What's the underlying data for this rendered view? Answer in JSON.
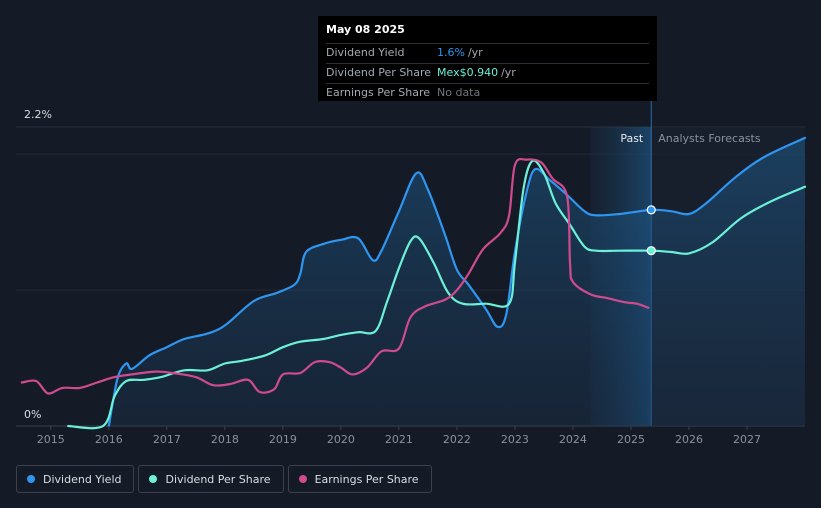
{
  "tooltip": {
    "date": "May 08 2025",
    "rows": [
      {
        "label": "Dividend Yield",
        "value": "1.6%",
        "unit": "/yr",
        "color": "#2e96f0"
      },
      {
        "label": "Dividend Per Share",
        "value": "Mex$0.940",
        "unit": "/yr",
        "color": "#6cf0d8"
      },
      {
        "label": "Earnings Per Share",
        "value": "No data",
        "unit": "",
        "color": "#6f757d"
      }
    ]
  },
  "regions": {
    "past": "Past",
    "forecast": "Analysts Forecasts"
  },
  "legend": [
    {
      "label": "Dividend Yield",
      "color": "#2e96f0"
    },
    {
      "label": "Dividend Per Share",
      "color": "#6cf0d8"
    },
    {
      "label": "Earnings Per Share",
      "color": "#cf4b8e"
    }
  ],
  "chart_data": {
    "type": "line",
    "x_ticks": [
      "2015",
      "2016",
      "2017",
      "2018",
      "2019",
      "2020",
      "2021",
      "2022",
      "2023",
      "2024",
      "2025",
      "2026",
      "2027"
    ],
    "y_ticks": [
      "0%",
      "2.2%"
    ],
    "ylim": [
      0,
      2.2
    ],
    "xlim": [
      2014.4,
      2028.0
    ],
    "cursor_x": 2025.35,
    "past_end": 2025.35,
    "forecast_shade_start": 2024.3,
    "series": [
      {
        "name": "Dividend Yield",
        "color": "#2e96f0",
        "filled": true,
        "points": [
          [
            2016.0,
            0
          ],
          [
            2016.15,
            0.35
          ],
          [
            2016.3,
            0.46
          ],
          [
            2016.4,
            0.42
          ],
          [
            2016.7,
            0.52
          ],
          [
            2017.0,
            0.58
          ],
          [
            2017.3,
            0.64
          ],
          [
            2017.7,
            0.68
          ],
          [
            2018.0,
            0.74
          ],
          [
            2018.5,
            0.92
          ],
          [
            2018.9,
            0.98
          ],
          [
            2019.2,
            1.04
          ],
          [
            2019.3,
            1.12
          ],
          [
            2019.4,
            1.28
          ],
          [
            2019.7,
            1.34
          ],
          [
            2020.0,
            1.37
          ],
          [
            2020.3,
            1.38
          ],
          [
            2020.55,
            1.22
          ],
          [
            2020.7,
            1.29
          ],
          [
            2021.0,
            1.58
          ],
          [
            2021.3,
            1.86
          ],
          [
            2021.5,
            1.74
          ],
          [
            2021.8,
            1.4
          ],
          [
            2022.0,
            1.15
          ],
          [
            2022.2,
            1.04
          ],
          [
            2022.5,
            0.86
          ],
          [
            2022.7,
            0.73
          ],
          [
            2022.85,
            0.82
          ],
          [
            2023.0,
            1.28
          ],
          [
            2023.2,
            1.72
          ],
          [
            2023.35,
            1.89
          ],
          [
            2023.6,
            1.81
          ],
          [
            2023.9,
            1.7
          ],
          [
            2024.2,
            1.58
          ],
          [
            2024.4,
            1.55
          ],
          [
            2024.8,
            1.56
          ],
          [
            2025.35,
            1.59
          ],
          [
            2025.7,
            1.58
          ],
          [
            2026.0,
            1.56
          ],
          [
            2026.3,
            1.64
          ],
          [
            2026.8,
            1.83
          ],
          [
            2027.3,
            1.98
          ],
          [
            2028.0,
            2.12
          ]
        ]
      },
      {
        "name": "Dividend Per Share",
        "color": "#6cf0d8",
        "filled": false,
        "points": [
          [
            2015.3,
            0
          ],
          [
            2015.9,
            0
          ],
          [
            2016.1,
            0.22
          ],
          [
            2016.3,
            0.33
          ],
          [
            2016.6,
            0.34
          ],
          [
            2016.9,
            0.36
          ],
          [
            2017.3,
            0.41
          ],
          [
            2017.7,
            0.41
          ],
          [
            2018.0,
            0.46
          ],
          [
            2018.3,
            0.48
          ],
          [
            2018.7,
            0.52
          ],
          [
            2019.0,
            0.58
          ],
          [
            2019.3,
            0.62
          ],
          [
            2019.7,
            0.64
          ],
          [
            2020.0,
            0.67
          ],
          [
            2020.3,
            0.69
          ],
          [
            2020.6,
            0.7
          ],
          [
            2020.8,
            0.92
          ],
          [
            2021.0,
            1.16
          ],
          [
            2021.2,
            1.36
          ],
          [
            2021.35,
            1.38
          ],
          [
            2021.6,
            1.2
          ],
          [
            2021.85,
            0.98
          ],
          [
            2022.1,
            0.9
          ],
          [
            2022.5,
            0.9
          ],
          [
            2022.9,
            0.9
          ],
          [
            2023.0,
            1.2
          ],
          [
            2023.15,
            1.75
          ],
          [
            2023.3,
            1.95
          ],
          [
            2023.5,
            1.86
          ],
          [
            2023.7,
            1.64
          ],
          [
            2023.95,
            1.48
          ],
          [
            2024.2,
            1.32
          ],
          [
            2024.4,
            1.29
          ],
          [
            2024.8,
            1.29
          ],
          [
            2025.35,
            1.29
          ],
          [
            2025.7,
            1.28
          ],
          [
            2026.0,
            1.27
          ],
          [
            2026.4,
            1.35
          ],
          [
            2026.9,
            1.53
          ],
          [
            2027.4,
            1.65
          ],
          [
            2028.0,
            1.76
          ]
        ]
      },
      {
        "name": "Earnings Per Share",
        "color": "#cf4b8e",
        "filled": false,
        "points": [
          [
            2014.5,
            0.32
          ],
          [
            2014.75,
            0.33
          ],
          [
            2014.95,
            0.24
          ],
          [
            2015.2,
            0.28
          ],
          [
            2015.5,
            0.28
          ],
          [
            2015.8,
            0.32
          ],
          [
            2016.1,
            0.36
          ],
          [
            2016.4,
            0.38
          ],
          [
            2016.8,
            0.4
          ],
          [
            2017.1,
            0.39
          ],
          [
            2017.5,
            0.36
          ],
          [
            2017.8,
            0.3
          ],
          [
            2018.1,
            0.31
          ],
          [
            2018.4,
            0.34
          ],
          [
            2018.6,
            0.25
          ],
          [
            2018.85,
            0.27
          ],
          [
            2019.0,
            0.38
          ],
          [
            2019.3,
            0.39
          ],
          [
            2019.55,
            0.47
          ],
          [
            2019.8,
            0.47
          ],
          [
            2020.0,
            0.43
          ],
          [
            2020.2,
            0.38
          ],
          [
            2020.45,
            0.43
          ],
          [
            2020.7,
            0.55
          ],
          [
            2021.0,
            0.57
          ],
          [
            2021.2,
            0.8
          ],
          [
            2021.45,
            0.88
          ],
          [
            2021.8,
            0.93
          ],
          [
            2022.0,
            1.0
          ],
          [
            2022.2,
            1.12
          ],
          [
            2022.45,
            1.3
          ],
          [
            2022.75,
            1.42
          ],
          [
            2022.9,
            1.55
          ],
          [
            2023.0,
            1.92
          ],
          [
            2023.2,
            1.96
          ],
          [
            2023.45,
            1.94
          ],
          [
            2023.65,
            1.82
          ],
          [
            2023.9,
            1.69
          ],
          [
            2023.95,
            1.2
          ],
          [
            2024.0,
            1.06
          ],
          [
            2024.3,
            0.97
          ],
          [
            2024.6,
            0.94
          ],
          [
            2024.9,
            0.91
          ],
          [
            2025.1,
            0.9
          ],
          [
            2025.3,
            0.87
          ]
        ]
      }
    ],
    "markers": [
      {
        "series": "Dividend Yield",
        "x": 2025.35,
        "y": 1.59
      },
      {
        "series": "Dividend Per Share",
        "x": 2025.35,
        "y": 1.29
      }
    ]
  }
}
